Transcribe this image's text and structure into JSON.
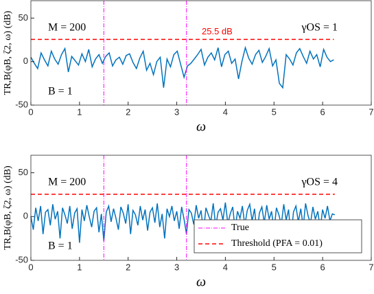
{
  "chart_data": [
    {
      "type": "line",
      "ylabel": "TR,B(φB, ζ2, ω) (dB)",
      "xlabel": "ω",
      "xlim": [
        0,
        7
      ],
      "xticks": [
        0,
        1,
        2,
        3,
        4,
        5,
        6,
        7
      ],
      "ylim": [
        -50,
        70
      ],
      "yticks": [
        -50,
        0,
        50
      ],
      "annotations": [
        "M = 200",
        "γOS = 1",
        "B = 1"
      ],
      "x": [
        0,
        0.07,
        0.14,
        0.21,
        0.28,
        0.35,
        0.42,
        0.49,
        0.56,
        0.63,
        0.7,
        0.77,
        0.84,
        0.91,
        0.98,
        1.05,
        1.12,
        1.19,
        1.26,
        1.33,
        1.4,
        1.47,
        1.54,
        1.61,
        1.68,
        1.75,
        1.82,
        1.89,
        1.96,
        2.03,
        2.1,
        2.17,
        2.24,
        2.31,
        2.38,
        2.45,
        2.52,
        2.59,
        2.66,
        2.73,
        2.8,
        2.87,
        2.94,
        3.01,
        3.08,
        3.15,
        3.22,
        3.29,
        3.36,
        3.43,
        3.5,
        3.57,
        3.64,
        3.71,
        3.78,
        3.85,
        3.92,
        3.99,
        4.06,
        4.13,
        4.2,
        4.27,
        4.34,
        4.41,
        4.48,
        4.55,
        4.62,
        4.69,
        4.76,
        4.83,
        4.9,
        4.97,
        5.04,
        5.11,
        5.18,
        5.25,
        5.32,
        5.39,
        5.46,
        5.53,
        5.6,
        5.67,
        5.74,
        5.81,
        5.88,
        5.95,
        6.02,
        6.09,
        6.16,
        6.23
      ],
      "series": [
        {
          "color": "#0072bd",
          "values": [
            5,
            -2,
            -8,
            10,
            2,
            -5,
            12,
            3,
            -3,
            8,
            15,
            -12,
            6,
            1,
            -4,
            9,
            0,
            14,
            -6,
            3,
            8,
            -2,
            6,
            10,
            -5,
            2,
            5,
            -3,
            7,
            9,
            -1,
            -8,
            4,
            12,
            -10,
            -2,
            -15,
            0,
            5,
            -30,
            3,
            -6,
            8,
            12,
            -3,
            -18,
            -5,
            -2,
            3,
            8,
            14,
            -4,
            5,
            10,
            2,
            16,
            -6,
            8,
            12,
            -2,
            3,
            -20,
            0,
            16,
            4,
            -3,
            8,
            13,
            -1,
            6,
            15,
            -5,
            2,
            -25,
            -30,
            8,
            3,
            -4,
            10,
            15,
            6,
            -2,
            12,
            3,
            8,
            -6,
            14,
            5,
            0,
            2
          ]
        }
      ],
      "vlines": {
        "color": "#ff00ff",
        "values": [
          1.5,
          3.2
        ]
      },
      "hline": {
        "color": "#ff0000",
        "value": 25.5,
        "value_label": "25.5 dB"
      }
    },
    {
      "type": "line",
      "ylabel": "TR,B(φB, ζ2, ω) (dB)",
      "xlabel": "ω",
      "xlim": [
        0,
        7
      ],
      "xticks": [
        0,
        1,
        2,
        3,
        4,
        5,
        6,
        7
      ],
      "ylim": [
        -50,
        70
      ],
      "yticks": [
        -50,
        0,
        50
      ],
      "annotations": [
        "M = 200",
        "γOS = 4",
        "B = 1"
      ],
      "x": [
        0,
        0.05,
        0.1,
        0.15,
        0.2,
        0.25,
        0.3,
        0.35,
        0.4,
        0.45,
        0.5,
        0.55,
        0.6,
        0.65,
        0.7,
        0.75,
        0.8,
        0.85,
        0.9,
        0.95,
        1,
        1.05,
        1.1,
        1.15,
        1.2,
        1.25,
        1.3,
        1.35,
        1.4,
        1.45,
        1.5,
        1.55,
        1.6,
        1.65,
        1.7,
        1.75,
        1.8,
        1.85,
        1.9,
        1.95,
        2,
        2.05,
        2.1,
        2.15,
        2.2,
        2.25,
        2.3,
        2.35,
        2.4,
        2.45,
        2.5,
        2.55,
        2.6,
        2.65,
        2.7,
        2.75,
        2.8,
        2.85,
        2.9,
        2.95,
        3,
        3.05,
        3.1,
        3.15,
        3.2,
        3.25,
        3.3,
        3.35,
        3.4,
        3.45,
        3.5,
        3.55,
        3.6,
        3.65,
        3.7,
        3.75,
        3.8,
        3.85,
        3.9,
        3.95,
        4,
        4.05,
        4.1,
        4.15,
        4.2,
        4.25,
        4.3,
        4.35,
        4.4,
        4.45,
        4.5,
        4.55,
        4.6,
        4.65,
        4.7,
        4.75,
        4.8,
        4.85,
        4.9,
        4.95,
        5,
        5.05,
        5.1,
        5.15,
        5.2,
        5.25,
        5.3,
        5.35,
        5.4,
        5.45,
        5.5,
        5.55,
        5.6,
        5.65,
        5.7,
        5.75,
        5.8,
        5.85,
        5.9,
        5.95,
        6,
        6.05,
        6.1,
        6.15,
        6.2,
        6.25
      ],
      "series": [
        {
          "color": "#0072bd",
          "values": [
            0,
            -15,
            10,
            -5,
            12,
            -20,
            5,
            8,
            -10,
            14,
            -3,
            6,
            -25,
            10,
            2,
            -8,
            12,
            -14,
            4,
            9,
            -30,
            8,
            -5,
            13,
            0,
            -12,
            6,
            10,
            -18,
            3,
            -28,
            5,
            12,
            -6,
            9,
            -2,
            -15,
            11,
            4,
            -8,
            14,
            -20,
            7,
            2,
            -10,
            12,
            -4,
            8,
            -16,
            5,
            10,
            -7,
            15,
            -12,
            3,
            -25,
            9,
            0,
            12,
            -5,
            6,
            -14,
            11,
            -3,
            -20,
            8,
            4,
            -9,
            13,
            -2,
            7,
            -18,
            10,
            2,
            -6,
            15,
            -11,
            5,
            9,
            -4,
            16,
            -8,
            3,
            11,
            -15,
            6,
            -2,
            12,
            -10,
            7,
            14,
            -5,
            9,
            -20,
            4,
            11,
            -7,
            13,
            -3,
            6,
            -16,
            10,
            2,
            -9,
            14,
            -4,
            8,
            -25,
            5,
            12,
            -6,
            9,
            -12,
            15,
            1,
            -8,
            11,
            -3,
            6,
            -14,
            8,
            -2,
            12,
            -5,
            3,
            2
          ]
        }
      ],
      "vlines": {
        "name": "True",
        "color": "#ff00ff",
        "values": [
          1.5,
          3.2
        ]
      },
      "hline": {
        "name": "Threshold (PFA = 0.01)",
        "color": "#ff0000",
        "value": 25.5
      }
    }
  ]
}
